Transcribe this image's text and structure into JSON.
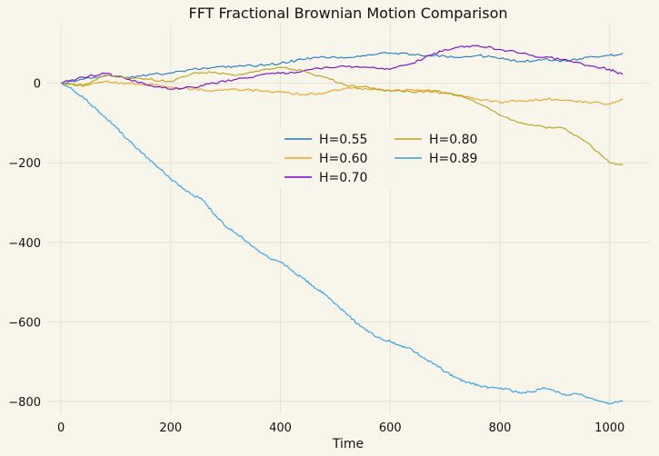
{
  "chart_data": {
    "type": "line",
    "title": "FFT Fractional Brownian Motion Comparison",
    "xlabel": "Time",
    "ylabel": "",
    "xlim": [
      -25,
      1075
    ],
    "ylim": [
      -830,
      150
    ],
    "xticks": [
      0,
      200,
      400,
      600,
      800,
      1000
    ],
    "yticks": [
      0,
      -200,
      -400,
      -600,
      -800
    ],
    "xtick_labels": [
      "0",
      "200",
      "400",
      "600",
      "800",
      "1000"
    ],
    "ytick_labels": [
      "0",
      "−200",
      "−400",
      "−600",
      "−800"
    ],
    "grid": true,
    "legend": "center",
    "background_color": "#f8f6ea",
    "series": [
      {
        "name": "H=0.55",
        "color": "#1f77c4",
        "points": [
          [
            0,
            0
          ],
          [
            40,
            10
          ],
          [
            80,
            18
          ],
          [
            120,
            15
          ],
          [
            160,
            22
          ],
          [
            200,
            26
          ],
          [
            240,
            35
          ],
          [
            280,
            40
          ],
          [
            320,
            42
          ],
          [
            360,
            45
          ],
          [
            400,
            50
          ],
          [
            440,
            60
          ],
          [
            480,
            66
          ],
          [
            520,
            64
          ],
          [
            560,
            72
          ],
          [
            600,
            76
          ],
          [
            640,
            72
          ],
          [
            680,
            70
          ],
          [
            720,
            65
          ],
          [
            760,
            70
          ],
          [
            800,
            62
          ],
          [
            840,
            55
          ],
          [
            880,
            60
          ],
          [
            920,
            56
          ],
          [
            960,
            65
          ],
          [
            1000,
            70
          ],
          [
            1024,
            76
          ]
        ]
      },
      {
        "name": "H=0.60",
        "color": "#f0a020",
        "points": [
          [
            0,
            0
          ],
          [
            40,
            -8
          ],
          [
            80,
            5
          ],
          [
            120,
            0
          ],
          [
            160,
            -3
          ],
          [
            200,
            -10
          ],
          [
            240,
            -15
          ],
          [
            280,
            -18
          ],
          [
            320,
            -15
          ],
          [
            360,
            -18
          ],
          [
            400,
            -22
          ],
          [
            440,
            -28
          ],
          [
            480,
            -25
          ],
          [
            520,
            -12
          ],
          [
            560,
            -15
          ],
          [
            600,
            -18
          ],
          [
            640,
            -16
          ],
          [
            680,
            -22
          ],
          [
            720,
            -30
          ],
          [
            760,
            -40
          ],
          [
            800,
            -48
          ],
          [
            840,
            -45
          ],
          [
            880,
            -40
          ],
          [
            920,
            -42
          ],
          [
            960,
            -48
          ],
          [
            1000,
            -52
          ],
          [
            1024,
            -42
          ]
        ]
      },
      {
        "name": "H=0.70",
        "color": "#7a00d0",
        "points": [
          [
            0,
            0
          ],
          [
            40,
            15
          ],
          [
            80,
            25
          ],
          [
            120,
            10
          ],
          [
            160,
            -5
          ],
          [
            200,
            -15
          ],
          [
            240,
            -10
          ],
          [
            280,
            0
          ],
          [
            320,
            10
          ],
          [
            360,
            20
          ],
          [
            400,
            25
          ],
          [
            440,
            30
          ],
          [
            480,
            40
          ],
          [
            520,
            42
          ],
          [
            560,
            40
          ],
          [
            600,
            35
          ],
          [
            640,
            50
          ],
          [
            680,
            75
          ],
          [
            720,
            90
          ],
          [
            760,
            95
          ],
          [
            800,
            85
          ],
          [
            840,
            75
          ],
          [
            880,
            65
          ],
          [
            920,
            60
          ],
          [
            960,
            45
          ],
          [
            1000,
            35
          ],
          [
            1024,
            22
          ]
        ]
      },
      {
        "name": "H=0.80",
        "color": "#b8a018",
        "points": [
          [
            0,
            0
          ],
          [
            40,
            -5
          ],
          [
            80,
            20
          ],
          [
            120,
            15
          ],
          [
            160,
            10
          ],
          [
            200,
            5
          ],
          [
            240,
            25
          ],
          [
            280,
            28
          ],
          [
            320,
            20
          ],
          [
            360,
            30
          ],
          [
            400,
            40
          ],
          [
            440,
            32
          ],
          [
            480,
            15
          ],
          [
            520,
            -5
          ],
          [
            560,
            -10
          ],
          [
            600,
            -20
          ],
          [
            640,
            -22
          ],
          [
            680,
            -18
          ],
          [
            720,
            -30
          ],
          [
            760,
            -50
          ],
          [
            800,
            -80
          ],
          [
            840,
            -100
          ],
          [
            880,
            -110
          ],
          [
            920,
            -115
          ],
          [
            960,
            -150
          ],
          [
            1000,
            -200
          ],
          [
            1024,
            -205
          ]
        ]
      },
      {
        "name": "H=0.89",
        "color": "#2c9ef0",
        "points": [
          [
            0,
            0
          ],
          [
            20,
            -15
          ],
          [
            40,
            -35
          ],
          [
            60,
            -60
          ],
          [
            80,
            -85
          ],
          [
            100,
            -110
          ],
          [
            120,
            -140
          ],
          [
            140,
            -165
          ],
          [
            160,
            -190
          ],
          [
            180,
            -215
          ],
          [
            200,
            -240
          ],
          [
            220,
            -262
          ],
          [
            240,
            -280
          ],
          [
            260,
            -295
          ],
          [
            280,
            -330
          ],
          [
            300,
            -360
          ],
          [
            320,
            -378
          ],
          [
            340,
            -400
          ],
          [
            360,
            -420
          ],
          [
            380,
            -440
          ],
          [
            400,
            -450
          ],
          [
            420,
            -470
          ],
          [
            440,
            -490
          ],
          [
            460,
            -510
          ],
          [
            480,
            -530
          ],
          [
            500,
            -555
          ],
          [
            520,
            -580
          ],
          [
            540,
            -605
          ],
          [
            560,
            -625
          ],
          [
            580,
            -640
          ],
          [
            600,
            -650
          ],
          [
            620,
            -660
          ],
          [
            640,
            -670
          ],
          [
            660,
            -690
          ],
          [
            680,
            -705
          ],
          [
            700,
            -725
          ],
          [
            720,
            -740
          ],
          [
            740,
            -752
          ],
          [
            760,
            -760
          ],
          [
            780,
            -765
          ],
          [
            800,
            -768
          ],
          [
            820,
            -772
          ],
          [
            840,
            -780
          ],
          [
            860,
            -775
          ],
          [
            880,
            -765
          ],
          [
            900,
            -775
          ],
          [
            920,
            -785
          ],
          [
            940,
            -780
          ],
          [
            960,
            -790
          ],
          [
            980,
            -800
          ],
          [
            1000,
            -805
          ],
          [
            1024,
            -800
          ]
        ]
      }
    ]
  }
}
